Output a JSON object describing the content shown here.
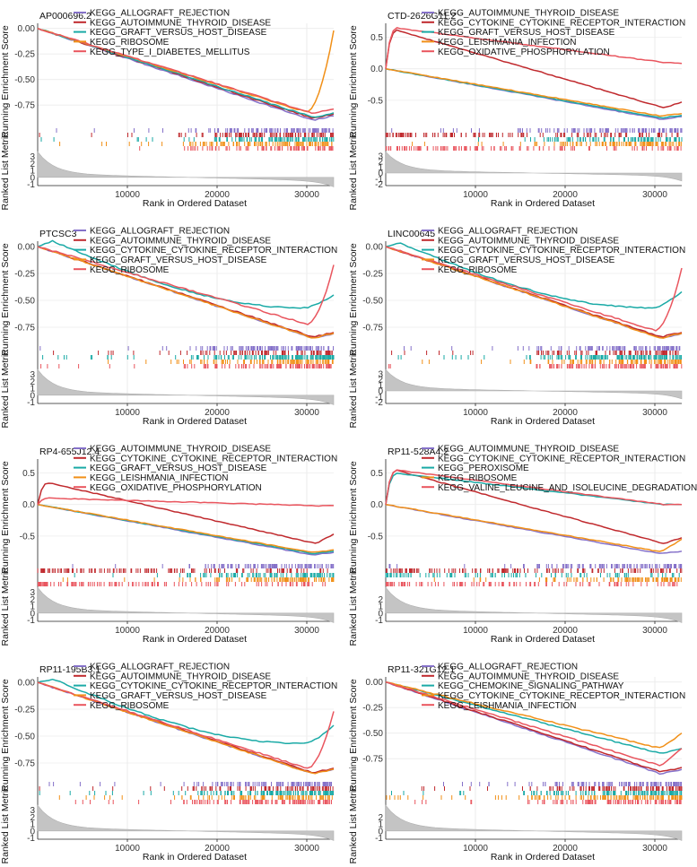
{
  "figure": {
    "xlabel": "Rank in Ordered Dataset",
    "ylabel_top": "Running Enrichment Score",
    "ylabel_bottom": "Ranked List Metric"
  },
  "chart_data": [
    {
      "type": "line",
      "title": "AP000696.2",
      "xlabel": "Rank in Ordered Dataset",
      "ylabel": "Running Enrichment Score",
      "xlim": [
        0,
        33000
      ],
      "xticks": [
        "10000",
        "20000",
        "30000"
      ],
      "ylim": [
        -0.95,
        0.05
      ],
      "yticks": [
        "0.00",
        "-0.25",
        "-0.50",
        "-0.75"
      ],
      "metric_ylim": [
        -1.2,
        3.6
      ],
      "metric_yticks": [
        "3",
        "2",
        "1",
        "0",
        "-1"
      ],
      "series": [
        {
          "name": "KEGG_ALLOGRAFT_REJECTION",
          "color": "#8571c9",
          "kind": "neg",
          "end_value": -0.9,
          "hits": 110
        },
        {
          "name": "KEGG_AUTOIMMUNE_THYROID_DISEASE",
          "color": "#c0292d",
          "kind": "neg",
          "end_value": -0.88,
          "hits": 100
        },
        {
          "name": "KEGG_GRAFT_VERSUS_HOST_DISEASE",
          "color": "#1aaaa6",
          "kind": "neg",
          "end_value": -0.87,
          "hits": 95
        },
        {
          "name": "KEGG_RIBOSOME",
          "color": "#f19018",
          "kind": "recover",
          "end_value": -0.82,
          "tail_value": -0.02,
          "hits": 120
        },
        {
          "name": "KEGG_TYPE_I_DIABETES_MELLITUS",
          "color": "#e9555e",
          "kind": "neg",
          "end_value": -0.83,
          "hits": 75
        }
      ]
    },
    {
      "type": "line",
      "title": "CTD-2626G11.2",
      "xlabel": "Rank in Ordered Dataset",
      "ylabel": "Running Enrichment Score",
      "xlim": [
        0,
        33000
      ],
      "xticks": [
        "10000",
        "20000",
        "30000"
      ],
      "ylim": [
        -0.9,
        0.72
      ],
      "yticks": [
        "0.5",
        "0.0",
        "-0.5"
      ],
      "metric_ylim": [
        -2.2,
        3.6
      ],
      "metric_yticks": [
        "3",
        "2",
        "1",
        "0",
        "-1",
        "-2"
      ],
      "series": [
        {
          "name": "KEGG_AUTOIMMUNE_THYROID_DISEASE",
          "color": "#8571c9",
          "kind": "neg",
          "end_value": -0.8,
          "hits": 110
        },
        {
          "name": "KEGG_CYTOKINE_CYTOKINE_RECEPTOR_INTERACTION",
          "color": "#c0292d",
          "kind": "pos",
          "peak_value": 0.62,
          "end_value": -0.62,
          "hits": 130
        },
        {
          "name": "KEGG_GRAFT_VERSUS_HOST_DISEASE",
          "color": "#1aaaa6",
          "kind": "neg",
          "end_value": -0.78,
          "hits": 90
        },
        {
          "name": "KEGG_LEISHMANIA_INFECTION",
          "color": "#f19018",
          "kind": "neg",
          "end_value": -0.75,
          "hits": 100
        },
        {
          "name": "KEGG_OXIDATIVE_PHOSPHORYLATION",
          "color": "#e9555e",
          "kind": "pos",
          "peak_value": 0.65,
          "end_value": 0.1,
          "hits": 120
        }
      ]
    },
    {
      "type": "line",
      "title": "PTCSC3",
      "xlabel": "Rank in Ordered Dataset",
      "ylabel": "Running Enrichment Score",
      "xlim": [
        0,
        33000
      ],
      "xticks": [
        "10000",
        "20000",
        "30000"
      ],
      "ylim": [
        -0.9,
        0.05
      ],
      "yticks": [
        "0.00",
        "-0.25",
        "-0.50",
        "-0.75"
      ],
      "metric_ylim": [
        -1.2,
        3.6
      ],
      "metric_yticks": [
        "3",
        "2",
        "1",
        "0",
        "-1"
      ],
      "series": [
        {
          "name": "KEGG_ALLOGRAFT_REJECTION",
          "color": "#8571c9",
          "kind": "neg",
          "end_value": -0.85,
          "hits": 100
        },
        {
          "name": "KEGG_AUTOIMMUNE_THYROID_DISEASE",
          "color": "#c0292d",
          "kind": "neg",
          "end_value": -0.84,
          "hits": 90
        },
        {
          "name": "KEGG_CYTOKINE_CYTOKINE_RECEPTOR_INTERACTION",
          "color": "#1aaaa6",
          "kind": "hump",
          "peak_value": 0.05,
          "end_value": -0.57,
          "tail_value": -0.45,
          "hits": 130
        },
        {
          "name": "KEGG_GRAFT_VERSUS_HOST_DISEASE",
          "color": "#f19018",
          "kind": "neg",
          "end_value": -0.85,
          "hits": 95
        },
        {
          "name": "KEGG_RIBOSOME",
          "color": "#e9555e",
          "kind": "recover",
          "end_value": -0.72,
          "tail_value": -0.17,
          "hits": 110
        }
      ]
    },
    {
      "type": "line",
      "title": "LINC00645",
      "xlabel": "Rank in Ordered Dataset",
      "ylabel": "Running Enrichment Score",
      "xlim": [
        0,
        33000
      ],
      "xticks": [
        "10000",
        "20000",
        "30000"
      ],
      "ylim": [
        -0.9,
        0.05
      ],
      "yticks": [
        "0.00",
        "-0.25",
        "-0.50",
        "-0.75"
      ],
      "metric_ylim": [
        -2.2,
        3.6
      ],
      "metric_yticks": [
        "3",
        "2",
        "1",
        "0",
        "-1",
        "-2"
      ],
      "series": [
        {
          "name": "KEGG_ALLOGRAFT_REJECTION",
          "color": "#8571c9",
          "kind": "neg",
          "end_value": -0.85,
          "hits": 100
        },
        {
          "name": "KEGG_AUTOIMMUNE_THYROID_DISEASE",
          "color": "#c0292d",
          "kind": "neg",
          "end_value": -0.84,
          "hits": 90
        },
        {
          "name": "KEGG_CYTOKINE_CYTOKINE_RECEPTOR_INTERACTION",
          "color": "#1aaaa6",
          "kind": "hump",
          "peak_value": 0.03,
          "end_value": -0.57,
          "tail_value": -0.42,
          "hits": 130
        },
        {
          "name": "KEGG_GRAFT_VERSUS_HOST_DISEASE",
          "color": "#f19018",
          "kind": "neg",
          "end_value": -0.85,
          "hits": 95
        },
        {
          "name": "KEGG_RIBOSOME",
          "color": "#e9555e",
          "kind": "recover",
          "end_value": -0.78,
          "tail_value": -0.2,
          "hits": 110
        }
      ]
    },
    {
      "type": "line",
      "title": "RP4-655J12.4",
      "xlabel": "Rank in Ordered Dataset",
      "ylabel": "Running Enrichment Score",
      "xlim": [
        0,
        33000
      ],
      "xticks": [
        "10000",
        "20000",
        "30000"
      ],
      "ylim": [
        -0.9,
        0.72
      ],
      "yticks": [
        "0.5",
        "0.0",
        "-0.5"
      ],
      "metric_ylim": [
        -1.2,
        3.6
      ],
      "metric_yticks": [
        "3",
        "2",
        "1",
        "0",
        "-1"
      ],
      "series": [
        {
          "name": "KEGG_AUTOIMMUNE_THYROID_DISEASE",
          "color": "#8571c9",
          "kind": "neg",
          "end_value": -0.8,
          "hits": 100
        },
        {
          "name": "KEGG_CYTOKINE_CYTOKINE_RECEPTOR_INTERACTION",
          "color": "#c0292d",
          "kind": "pos",
          "peak_value": 0.35,
          "end_value": -0.62,
          "tail_value": -0.47,
          "hits": 130
        },
        {
          "name": "KEGG_GRAFT_VERSUS_HOST_DISEASE",
          "color": "#1aaaa6",
          "kind": "neg",
          "end_value": -0.78,
          "hits": 90
        },
        {
          "name": "KEGG_LEISHMANIA_INFECTION",
          "color": "#f19018",
          "kind": "neg",
          "end_value": -0.76,
          "tail_value": -0.72,
          "hits": 100
        },
        {
          "name": "KEGG_OXIDATIVE_PHOSPHORYLATION",
          "color": "#e9555e",
          "kind": "pos",
          "peak_value": 0.1,
          "end_value": -0.02,
          "hits": 120
        }
      ]
    },
    {
      "type": "line",
      "title": "RP11-528A4.2",
      "xlabel": "Rank in Ordered Dataset",
      "ylabel": "Running Enrichment Score",
      "xlim": [
        0,
        33000
      ],
      "xticks": [
        "10000",
        "20000",
        "30000"
      ],
      "ylim": [
        -0.9,
        0.72
      ],
      "yticks": [
        "0.5",
        "0.0",
        "-0.5"
      ],
      "metric_ylim": [
        -1.2,
        3.6
      ],
      "metric_yticks": [
        "2",
        "1",
        "0",
        "-1"
      ],
      "series": [
        {
          "name": "KEGG_AUTOIMMUNE_THYROID_DISEASE",
          "color": "#8571c9",
          "kind": "neg",
          "end_value": -0.78,
          "hits": 100
        },
        {
          "name": "KEGG_CYTOKINE_CYTOKINE_RECEPTOR_INTERACTION",
          "color": "#c0292d",
          "kind": "pos",
          "peak_value": 0.55,
          "end_value": -0.62,
          "hits": 130
        },
        {
          "name": "KEGG_PEROXISOME",
          "color": "#1aaaa6",
          "kind": "pos",
          "peak_value": 0.5,
          "end_value": 0.0,
          "hits": 90
        },
        {
          "name": "KEGG_RIBOSOME",
          "color": "#f19018",
          "kind": "neg",
          "end_value": -0.75,
          "tail_value": -0.55,
          "hits": 100
        },
        {
          "name": "KEGG_VALINE_LEUCINE_AND_ISOLEUCINE_DEGRADATION",
          "color": "#e9555e",
          "kind": "pos",
          "peak_value": 0.55,
          "end_value": 0.0,
          "hits": 110
        }
      ]
    },
    {
      "type": "line",
      "title": "RP11-195B3.1",
      "xlabel": "Rank in Ordered Dataset",
      "ylabel": "Running Enrichment Score",
      "xlim": [
        0,
        33000
      ],
      "xticks": [
        "10000",
        "20000",
        "30000"
      ],
      "ylim": [
        -0.9,
        0.05
      ],
      "yticks": [
        "0.00",
        "-0.25",
        "-0.50",
        "-0.75"
      ],
      "metric_ylim": [
        -1.2,
        3.6
      ],
      "metric_yticks": [
        "3",
        "2",
        "1",
        "0",
        "-1"
      ],
      "series": [
        {
          "name": "KEGG_ALLOGRAFT_REJECTION",
          "color": "#8571c9",
          "kind": "neg",
          "end_value": -0.85,
          "hits": 100
        },
        {
          "name": "KEGG_AUTOIMMUNE_THYROID_DISEASE",
          "color": "#c0292d",
          "kind": "neg",
          "end_value": -0.84,
          "hits": 90
        },
        {
          "name": "KEGG_CYTOKINE_CYTOKINE_RECEPTOR_INTERACTION",
          "color": "#1aaaa6",
          "kind": "hump",
          "peak_value": 0.03,
          "end_value": -0.57,
          "tail_value": -0.4,
          "hits": 130
        },
        {
          "name": "KEGG_GRAFT_VERSUS_HOST_DISEASE",
          "color": "#f19018",
          "kind": "neg",
          "end_value": -0.85,
          "hits": 95
        },
        {
          "name": "KEGG_RIBOSOME",
          "color": "#e9555e",
          "kind": "recover",
          "end_value": -0.8,
          "tail_value": -0.27,
          "hits": 110
        }
      ]
    },
    {
      "type": "line",
      "title": "RP11-321G12.1",
      "xlabel": "Rank in Ordered Dataset",
      "ylabel": "Running Enrichment Score",
      "xlim": [
        0,
        33000
      ],
      "xticks": [
        "10000",
        "20000",
        "30000"
      ],
      "ylim": [
        -0.95,
        0.05
      ],
      "yticks": [
        "0.00",
        "-0.25",
        "-0.50",
        "-0.75"
      ],
      "metric_ylim": [
        -1.2,
        3.6
      ],
      "metric_yticks": [
        "2",
        "1",
        "0",
        "-1"
      ],
      "series": [
        {
          "name": "KEGG_ALLOGRAFT_REJECTION",
          "color": "#8571c9",
          "kind": "neg",
          "end_value": -0.9,
          "hits": 110
        },
        {
          "name": "KEGG_AUTOIMMUNE_THYROID_DISEASE",
          "color": "#c0292d",
          "kind": "neg",
          "end_value": -0.88,
          "hits": 100
        },
        {
          "name": "KEGG_CHEMOKINE_SIGNALING_PATHWAY",
          "color": "#1aaaa6",
          "kind": "neg",
          "end_value": -0.7,
          "tail_value": -0.65,
          "hits": 120
        },
        {
          "name": "KEGG_CYTOKINE_CYTOKINE_RECEPTOR_INTERACTION",
          "color": "#f19018",
          "kind": "neg",
          "end_value": -0.65,
          "tail_value": -0.5,
          "hits": 130
        },
        {
          "name": "KEGG_LEISHMANIA_INFECTION",
          "color": "#e9555e",
          "kind": "neg",
          "end_value": -0.82,
          "tail_value": -0.65,
          "hits": 100
        }
      ]
    }
  ]
}
